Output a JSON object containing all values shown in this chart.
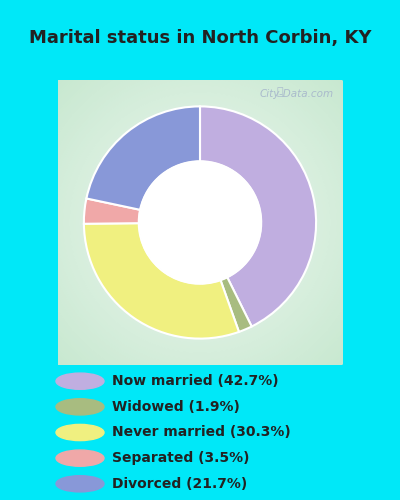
{
  "title": "Marital status in North Corbin, KY",
  "slices": [
    42.7,
    1.9,
    30.3,
    3.5,
    21.7
  ],
  "labels": [
    "Now married (42.7%)",
    "Widowed (1.9%)",
    "Never married (30.3%)",
    "Separated (3.5%)",
    "Divorced (21.7%)"
  ],
  "colors": [
    "#c0aee0",
    "#a8bc80",
    "#f0f080",
    "#f0a8a8",
    "#8898d8"
  ],
  "bg_cyan": "#00e8f8",
  "bg_chart_outer": "#c8e8d0",
  "bg_chart_inner": "#e8f4ec",
  "title_color": "#222222",
  "legend_text_color": "#222222",
  "watermark_color": "#aabbcc",
  "start_angle": 90,
  "title_fontsize": 13,
  "legend_fontsize": 10,
  "donut_outer_r": 1.1,
  "donut_width": 0.52
}
